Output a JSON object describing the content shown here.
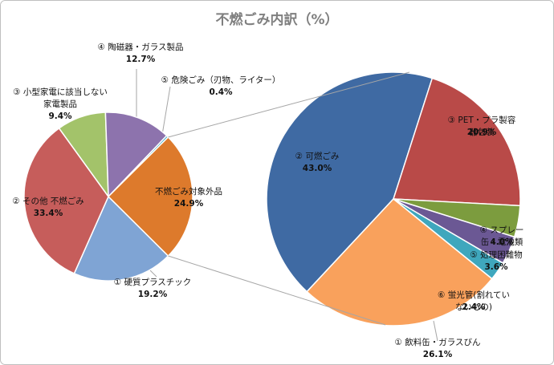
{
  "chart_data": [
    {
      "type": "pie",
      "title": "不燃ごみ内訳（%）",
      "categories": [
        "① 硬質プラスチック",
        "② その他 不燃ごみ",
        "③ 小型家電に該当しない\n家電製品",
        "④ 陶磁器・ガラス製品",
        "⑤ 危険ごみ（刃物、ライター）",
        "不燃ごみ対象外品"
      ],
      "values": [
        19.2,
        33.4,
        9.4,
        12.7,
        0.4,
        24.9
      ],
      "value_labels": [
        "19.2%",
        "33.4%",
        "9.4%",
        "12.7%",
        "0.4%",
        "24.9%"
      ],
      "colors": [
        "#7fa4d4",
        "#c65d5b",
        "#a3c36a",
        "#8d73ad",
        "#4bacc6",
        "#dd7a2c"
      ]
    },
    {
      "type": "pie",
      "categories": [
        "② 可燃ごみ",
        "③ PET・プラ製容器包装",
        "④ スプレー缶・電池類",
        "⑤ 処理困難物",
        "⑥ 蛍光管(割れていないもの)",
        "① 飲料缶・ガラスびん"
      ],
      "values": [
        43.0,
        20.9,
        4.0,
        3.6,
        2.4,
        26.1
      ],
      "value_labels": [
        "43.0%",
        "20.9%",
        "4.0%",
        "3.6%",
        "2.4%",
        "26.1%"
      ],
      "colors": [
        "#3f6aa3",
        "#b94a48",
        "#7c9c3e",
        "#6b5894",
        "#3fa7bd",
        "#f9a15c"
      ]
    }
  ]
}
